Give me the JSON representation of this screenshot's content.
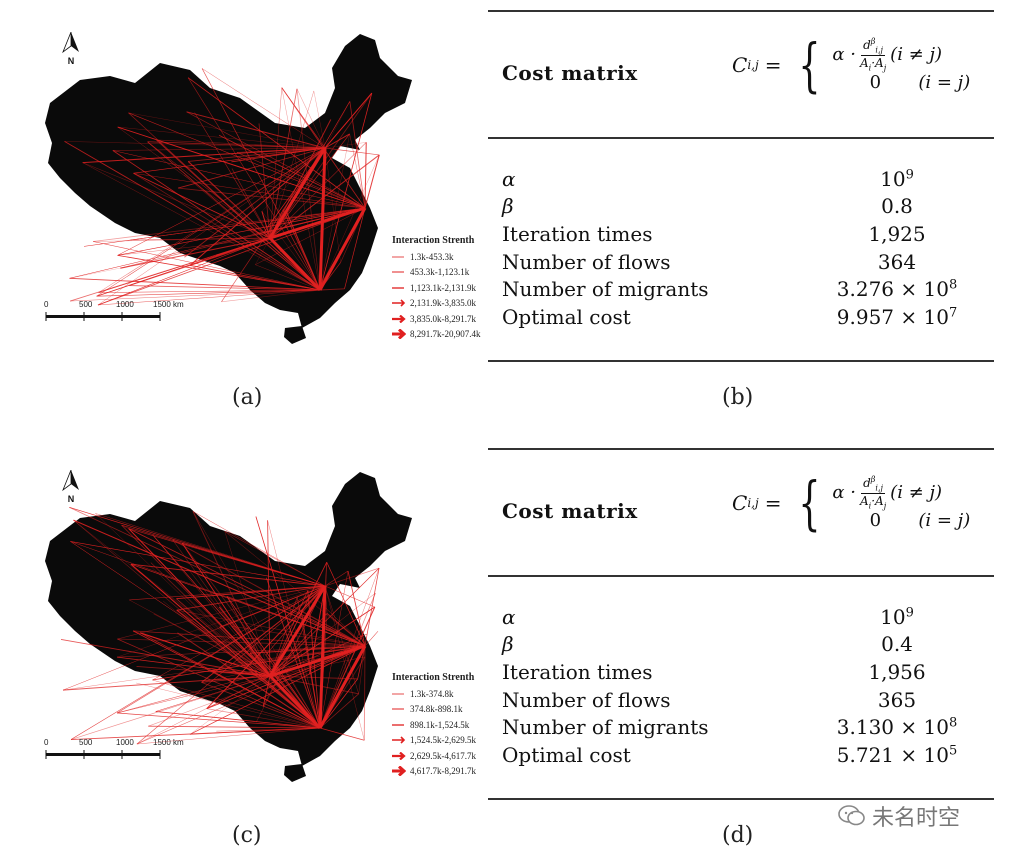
{
  "figures": [
    {
      "id": "a",
      "caption": "(a)",
      "legend_title": "Interaction Strenth",
      "legend_items": [
        "1.3k-453.3k",
        "453.3k-1,123.1k",
        "1,123.1k-2,131.9k",
        "2,131.9k-3,835.0k",
        "3,835.0k-8,291.7k",
        "8,291.7k-20,907.4k"
      ],
      "scale_ticks": [
        "0",
        "500",
        "1000",
        "1500 km"
      ],
      "north_label": "N"
    },
    {
      "id": "c",
      "caption": "(c)",
      "legend_title": "Interaction Strenth",
      "legend_items": [
        "1.3k-374.8k",
        "374.8k-898.1k",
        "898.1k-1,524.5k",
        "1,524.5k-2,629.5k",
        "2,629.5k-4,617.7k",
        "4,617.7k-8,291.7k"
      ],
      "scale_ticks": [
        "0",
        "500",
        "1000",
        "1500 km"
      ],
      "north_label": "N"
    }
  ],
  "tables": [
    {
      "id": "b",
      "caption": "(b)",
      "cost_label": "Cost matrix",
      "formula": {
        "lhs": "C",
        "lhs_sub": "i,j",
        "case1": "(i ≠ j)",
        "case2_value": "0",
        "case2": "(i = j)",
        "alpha": "α ·",
        "num": "d",
        "num_sub": "i,j",
        "num_sup": "β",
        "den": "A",
        "den_sub1": "i",
        "den_dot": "·A",
        "den_sub2": "j"
      },
      "rows": [
        {
          "name": "α",
          "value": "10",
          "sup": "9"
        },
        {
          "name": "β",
          "value": "0.8",
          "sup": ""
        },
        {
          "name": "Iteration times",
          "value": "1,925",
          "sup": ""
        },
        {
          "name": "Number of flows",
          "value": "364",
          "sup": ""
        },
        {
          "name": "Number of migrants",
          "value": "3.276 × 10",
          "sup": "8"
        },
        {
          "name": "Optimal cost",
          "value": "9.957 × 10",
          "sup": "7"
        }
      ]
    },
    {
      "id": "d",
      "caption": "(d)",
      "cost_label": "Cost matrix",
      "formula": {
        "lhs": "C",
        "lhs_sub": "i,j",
        "case1": "(i ≠ j)",
        "case2_value": "0",
        "case2": "(i = j)",
        "alpha": "α ·",
        "num": "d",
        "num_sub": "i,j",
        "num_sup": "β",
        "den": "A",
        "den_sub1": "i",
        "den_dot": "·A",
        "den_sub2": "j"
      },
      "rows": [
        {
          "name": "α",
          "value": "10",
          "sup": "9"
        },
        {
          "name": "β",
          "value": "0.4",
          "sup": ""
        },
        {
          "name": "Iteration times",
          "value": "1,956",
          "sup": ""
        },
        {
          "name": "Number of flows",
          "value": "365",
          "sup": ""
        },
        {
          "name": "Number of migrants",
          "value": "3.130 × 10",
          "sup": "8"
        },
        {
          "name": "Optimal cost",
          "value": "5.721 × 10",
          "sup": "5"
        }
      ]
    }
  ],
  "watermark": "未名时空",
  "colors": {
    "map_fill": "#0a0a0a",
    "flow": "#e02020",
    "rule": "#333333"
  }
}
